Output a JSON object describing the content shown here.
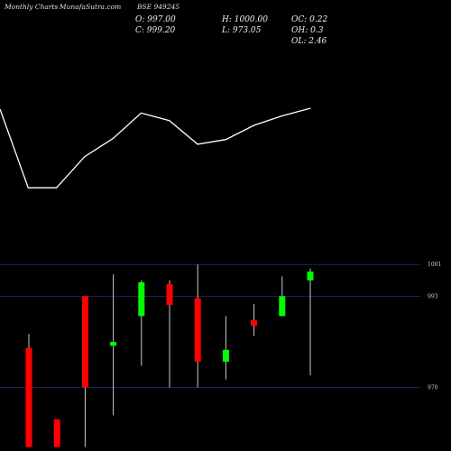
{
  "header": {
    "site": "Monthly Charts",
    "source": "- MunafaSutra.com",
    "symbol": "BSE 949245"
  },
  "ohlc": {
    "open": "O: 997.00",
    "close": "C: 999.20",
    "high": "H: 1000.00",
    "low": "L: 973.05",
    "oc": "OC: 0.22",
    "oh": "OH: 0.3",
    "ol": "OL: 2.46"
  },
  "colors": {
    "background": "#000000",
    "bull": "#00ff00",
    "bear": "#ff0000",
    "line": "#ffffff",
    "grid": "#2a2a6a"
  },
  "chart_data": [
    {
      "type": "line",
      "x": [
        1,
        2,
        3,
        4,
        5,
        6,
        7,
        8,
        9,
        10,
        11,
        12
      ],
      "series": [
        {
          "values": [
            125,
            208,
            208,
            175,
            156,
            129,
            137,
            162,
            157,
            142,
            132,
            124
          ]
        }
      ]
    },
    {
      "type": "candlestick",
      "y_ticks": [
        "1001",
        "993",
        "970"
      ],
      "y_tick_values": [
        1001,
        993,
        970
      ],
      "ylim": [
        954,
        1004
      ],
      "candles": [
        {
          "open": 980.0,
          "high": 983.5,
          "low": 955.0,
          "close": 955.0
        },
        {
          "open": 962.0,
          "high": 962.0,
          "low": 955.0,
          "close": 955.0
        },
        {
          "open": 993.0,
          "high": 993.0,
          "low": 955.0,
          "close": 970.0
        },
        {
          "open": 980.5,
          "high": 998.5,
          "low": 963.0,
          "close": 981.5
        },
        {
          "open": 988.0,
          "high": 997.0,
          "low": 975.5,
          "close": 996.5
        },
        {
          "open": 996.0,
          "high": 997.0,
          "low": 970.0,
          "close": 990.8
        },
        {
          "open": 992.5,
          "high": 1001.0,
          "low": 970.0,
          "close": 976.5
        },
        {
          "open": 976.5,
          "high": 988.0,
          "low": 972.0,
          "close": 979.5
        },
        {
          "open": 987.0,
          "high": 991.0,
          "low": 983.0,
          "close": 985.5
        },
        {
          "open": 988.0,
          "high": 998.0,
          "low": 988.0,
          "close": 993.0
        },
        {
          "open": 997.0,
          "high": 1000.0,
          "low": 973.05,
          "close": 999.2
        }
      ]
    }
  ]
}
